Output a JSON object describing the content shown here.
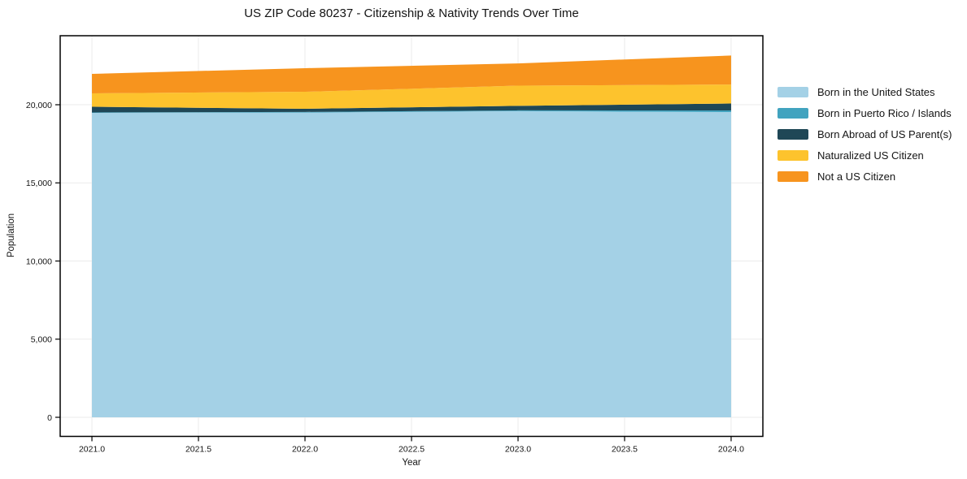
{
  "chart": {
    "title": "US ZIP Code 80237 - Citizenship & Nativity Trends Over Time",
    "xlabel": "Year",
    "ylabel": "Population"
  },
  "chart_data": {
    "type": "area",
    "stacked": true,
    "title": "US ZIP Code 80237 - Citizenship & Nativity Trends Over Time",
    "xlabel": "Year",
    "ylabel": "Population",
    "x": [
      2021,
      2022,
      2023,
      2024
    ],
    "series": [
      {
        "name": "Born in the United States",
        "color": "#a4d1e6",
        "values": [
          19480,
          19500,
          19590,
          19530
        ]
      },
      {
        "name": "Born in Puerto Rico / Islands",
        "color": "#41a3bf",
        "values": [
          30,
          40,
          50,
          105
        ]
      },
      {
        "name": "Born Abroad of US Parent(s)",
        "color": "#1f4756",
        "values": [
          360,
          200,
          290,
          440
        ]
      },
      {
        "name": "Naturalized US Citizen",
        "color": "#fdc32d",
        "values": [
          860,
          1090,
          1290,
          1220
        ]
      },
      {
        "name": "Not a US Citizen",
        "color": "#f7941e",
        "values": [
          1245,
          1510,
          1425,
          1855
        ]
      }
    ],
    "totals": [
      21975,
      22340,
      22645,
      23150
    ],
    "xlim": [
      2020.851,
      2024.149
    ],
    "ylim": [
      -1221,
      24416
    ],
    "xticks": [
      2021.0,
      2021.5,
      2022.0,
      2022.5,
      2023.0,
      2023.5,
      2024.0
    ],
    "xtick_labels": [
      "2021.0",
      "2021.5",
      "2022.0",
      "2022.5",
      "2023.0",
      "2023.5",
      "2024.0"
    ],
    "yticks": [
      0,
      5000,
      10000,
      15000,
      20000
    ],
    "ytick_labels": [
      "0",
      "5,000",
      "10,000",
      "15,000",
      "20,000"
    ],
    "grid": true,
    "grid_color": "#ebebeb",
    "spine_color": "#000000",
    "legend_position": "right-outside",
    "background_color": "#ffffff"
  }
}
